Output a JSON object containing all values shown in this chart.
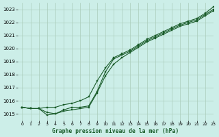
{
  "title": "Graphe pression niveau de la mer (hPa)",
  "bg_color": "#cceee8",
  "grid_color": "#aaccbb",
  "line_color": "#1a5c2a",
  "marker_color": "#1a5c2a",
  "xlim": [
    -0.5,
    23
  ],
  "ylim": [
    1014.5,
    1023.5
  ],
  "yticks": [
    1015,
    1016,
    1017,
    1018,
    1019,
    1020,
    1021,
    1022,
    1023
  ],
  "xticks": [
    0,
    1,
    2,
    3,
    4,
    5,
    6,
    7,
    8,
    9,
    10,
    11,
    12,
    13,
    14,
    15,
    16,
    17,
    18,
    19,
    20,
    21,
    22,
    23
  ],
  "series1": [
    1015.5,
    1015.4,
    1015.4,
    1015.5,
    1015.5,
    1015.7,
    1015.8,
    1016.0,
    1016.3,
    1017.5,
    1018.5,
    1019.3,
    1019.6,
    1019.9,
    1020.3,
    1020.7,
    1021.0,
    1021.3,
    1021.6,
    1021.9,
    1022.1,
    1022.3,
    1022.7,
    1023.2
  ],
  "series2": [
    1015.5,
    1015.4,
    1015.4,
    1015.1,
    1015.0,
    1015.3,
    1015.5,
    1015.5,
    1015.6,
    1016.7,
    1018.2,
    1019.2,
    1019.5,
    1019.8,
    1020.2,
    1020.6,
    1020.9,
    1021.2,
    1021.5,
    1021.8,
    1022.0,
    1022.2,
    1022.6,
    1023.0
  ],
  "series3": [
    1015.5,
    1015.4,
    1015.4,
    1014.9,
    1015.0,
    1015.2,
    1015.3,
    1015.4,
    1015.5,
    1016.6,
    1017.9,
    1018.8,
    1019.3,
    1019.7,
    1020.1,
    1020.5,
    1020.8,
    1021.1,
    1021.4,
    1021.7,
    1021.9,
    1022.1,
    1022.5,
    1022.9
  ]
}
